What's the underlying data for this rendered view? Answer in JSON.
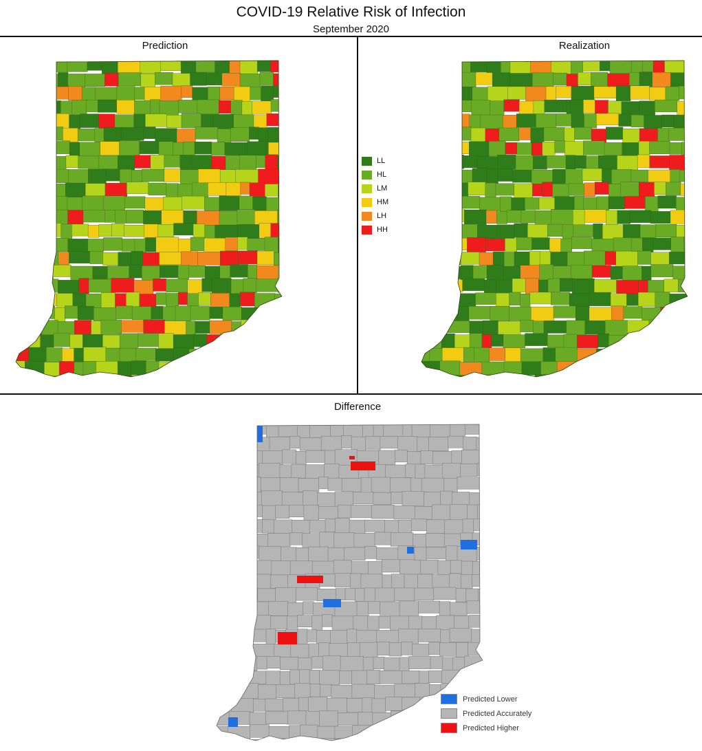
{
  "header": {
    "title": "COVID-19 Relative Risk of Infection",
    "subtitle": "September 2020"
  },
  "panels": {
    "prediction": {
      "label": "Prediction"
    },
    "realization": {
      "label": "Realization"
    },
    "difference": {
      "label": "Difference"
    }
  },
  "risk_legend": {
    "items": [
      {
        "label": "LL",
        "color": "#2e7d1a"
      },
      {
        "label": "HL",
        "color": "#6aab25"
      },
      {
        "label": "LM",
        "color": "#b5d41a"
      },
      {
        "label": "HM",
        "color": "#f2cc12"
      },
      {
        "label": "LH",
        "color": "#f2891e"
      },
      {
        "label": "HH",
        "color": "#ee1c1c"
      }
    ]
  },
  "difference_legend": {
    "items": [
      {
        "label": "Predicted Lower",
        "color": "#1f6fe0"
      },
      {
        "label": "Predicted Accurately",
        "color": "#b5b5b5"
      },
      {
        "label": "Predicted Higher",
        "color": "#ee1111"
      }
    ]
  }
}
